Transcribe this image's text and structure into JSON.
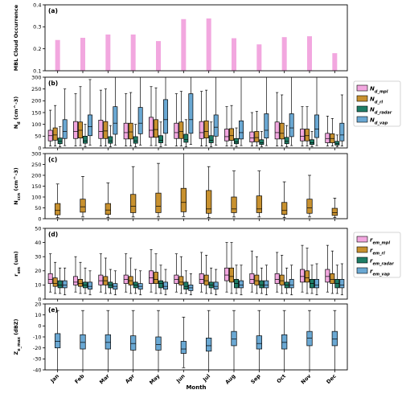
{
  "figure": {
    "xlabel": "Month",
    "months": [
      "Jan",
      "Feb",
      "Mar",
      "Apr",
      "May",
      "Jun",
      "Jul",
      "Aug",
      "Sep",
      "Oct",
      "Nov",
      "Dec"
    ]
  },
  "colors": {
    "mpl": "#f2a7df",
    "rl": "#c8912f",
    "radar": "#1e7d66",
    "vap": "#6aa8d3"
  },
  "chart_data": [
    {
      "type": "bar",
      "panel_label": "(a)",
      "ylabel": "MBL Cloud Occurrence",
      "ylim": [
        0.1,
        0.4
      ],
      "yticks": [
        "0.1",
        "0.2",
        "0.3",
        "0.4"
      ],
      "ytick_values": [
        0.1,
        0.2,
        0.3,
        0.4
      ],
      "categories": [
        "Jan",
        "Feb",
        "Mar",
        "Apr",
        "May",
        "Jun",
        "Jul",
        "Aug",
        "Sep",
        "Oct",
        "Nov",
        "Dec"
      ],
      "values": [
        0.24,
        0.25,
        0.265,
        0.265,
        0.235,
        0.335,
        0.338,
        0.248,
        0.22,
        0.253,
        0.257,
        0.18
      ],
      "color": "#f2a7df"
    },
    {
      "type": "boxplot",
      "panel_label": "(b)",
      "ylabel": "N_d (cm^-3)",
      "ylim": [
        0,
        300
      ],
      "yticks": [
        "0",
        "50",
        "100",
        "150",
        "200",
        "250",
        "300"
      ],
      "ytick_values": [
        0,
        50,
        100,
        150,
        200,
        250,
        300
      ],
      "legend": [
        "N_d_mpl",
        "N_d_rl",
        "N_d_radar",
        "N_d_vap"
      ],
      "series": [
        {
          "key": "mpl",
          "boxes": [
            [
              8,
              30,
              52,
              75,
              160
            ],
            [
              8,
              40,
              70,
              112,
              230
            ],
            [
              8,
              40,
              70,
              118,
              245
            ],
            [
              8,
              38,
              65,
              105,
              230
            ],
            [
              10,
              45,
              75,
              130,
              260
            ],
            [
              8,
              40,
              65,
              105,
              230
            ],
            [
              8,
              40,
              65,
              112,
              240
            ],
            [
              8,
              30,
              48,
              80,
              175
            ],
            [
              8,
              25,
              42,
              68,
              150
            ],
            [
              8,
              38,
              65,
              110,
              235
            ],
            [
              8,
              30,
              50,
              80,
              175
            ],
            [
              8,
              22,
              40,
              62,
              135
            ]
          ]
        },
        {
          "key": "rl",
          "boxes": [
            [
              8,
              33,
              55,
              85,
              180
            ],
            [
              10,
              42,
              75,
              110,
              260
            ],
            [
              8,
              40,
              72,
              112,
              250
            ],
            [
              8,
              38,
              68,
              105,
              235
            ],
            [
              10,
              45,
              78,
              120,
              255
            ],
            [
              8,
              40,
              70,
              110,
              240
            ],
            [
              8,
              42,
              70,
              115,
              245
            ],
            [
              8,
              32,
              52,
              82,
              180
            ],
            [
              8,
              26,
              44,
              70,
              155
            ],
            [
              8,
              38,
              62,
              105,
              225
            ],
            [
              8,
              30,
              52,
              80,
              175
            ],
            [
              8,
              22,
              40,
              60,
              125
            ]
          ]
        },
        {
          "key": "radar",
          "boxes": [
            [
              5,
              18,
              28,
              42,
              90
            ],
            [
              5,
              20,
              30,
              50,
              100
            ],
            [
              5,
              20,
              30,
              48,
              95
            ],
            [
              5,
              20,
              30,
              48,
              100
            ],
            [
              5,
              22,
              32,
              52,
              110
            ],
            [
              5,
              24,
              35,
              58,
              120
            ],
            [
              5,
              22,
              32,
              52,
              110
            ],
            [
              5,
              18,
              25,
              40,
              85
            ],
            [
              5,
              15,
              22,
              35,
              70
            ],
            [
              5,
              18,
              28,
              45,
              95
            ],
            [
              5,
              15,
              22,
              35,
              70
            ],
            [
              5,
              12,
              18,
              28,
              55
            ]
          ]
        },
        {
          "key": "vap",
          "boxes": [
            [
              10,
              40,
              70,
              120,
              250
            ],
            [
              12,
              52,
              90,
              140,
              290
            ],
            [
              12,
              58,
              105,
              175,
              300
            ],
            [
              12,
              60,
              105,
              172,
              300
            ],
            [
              12,
              62,
              120,
              205,
              300
            ],
            [
              15,
              62,
              120,
              230,
              300
            ],
            [
              12,
              50,
              88,
              140,
              300
            ],
            [
              10,
              38,
              65,
              115,
              300
            ],
            [
              10,
              42,
              75,
              145,
              300
            ],
            [
              10,
              48,
              85,
              145,
              300
            ],
            [
              10,
              44,
              80,
              140,
              300
            ],
            [
              8,
              30,
              55,
              105,
              225
            ]
          ]
        }
      ]
    },
    {
      "type": "boxplot",
      "panel_label": "(c)",
      "ylabel": "N_ccn (cm^-3)",
      "ylim": [
        0,
        300
      ],
      "yticks": [
        "0",
        "50",
        "100",
        "150",
        "200",
        "250",
        "300"
      ],
      "ytick_values": [
        0,
        50,
        100,
        150,
        200,
        250,
        300
      ],
      "series": [
        {
          "key": "rl",
          "boxes": [
            [
              5,
              18,
              38,
              70,
              160
            ],
            [
              8,
              30,
              55,
              90,
              195
            ],
            [
              5,
              20,
              40,
              70,
              165
            ],
            [
              8,
              28,
              58,
              112,
              240
            ],
            [
              8,
              28,
              58,
              118,
              255
            ],
            [
              10,
              32,
              75,
              140,
              300
            ],
            [
              5,
              25,
              45,
              130,
              240
            ],
            [
              8,
              28,
              45,
              100,
              220
            ],
            [
              8,
              28,
              45,
              105,
              220
            ],
            [
              5,
              20,
              38,
              75,
              170
            ],
            [
              8,
              25,
              50,
              90,
              200
            ],
            [
              5,
              15,
              28,
              48,
              95
            ]
          ]
        }
      ]
    },
    {
      "type": "boxplot",
      "panel_label": "(d)",
      "ylabel": "r_em (um)",
      "ylim": [
        0,
        50
      ],
      "yticks": [
        "0",
        "10",
        "20",
        "30",
        "40",
        "50"
      ],
      "ytick_values": [
        0,
        10,
        20,
        30,
        40,
        50
      ],
      "legend": [
        "r_em_mpl",
        "r_em_rl",
        "r_em_radar",
        "r_em_vap"
      ],
      "series": [
        {
          "key": "mpl",
          "boxes": [
            [
              5,
              11,
              14,
              18,
              32
            ],
            [
              5,
              10,
              12,
              16,
              30
            ],
            [
              5,
              10,
              13,
              17,
              32
            ],
            [
              5,
              11,
              14,
              17,
              32
            ],
            [
              5,
              11,
              15,
              20,
              35
            ],
            [
              5,
              11,
              14,
              17,
              32
            ],
            [
              5,
              11,
              14,
              18,
              33
            ],
            [
              5,
              13,
              17,
              22,
              40
            ],
            [
              5,
              11,
              14,
              18,
              34
            ],
            [
              5,
              11,
              14,
              18,
              33
            ],
            [
              5,
              12,
              16,
              21,
              38
            ],
            [
              5,
              12,
              16,
              21,
              38
            ]
          ]
        },
        {
          "key": "rl",
          "boxes": [
            [
              4,
              9,
              11,
              15,
              26
            ],
            [
              4,
              9,
              11,
              14,
              26
            ],
            [
              4,
              10,
              13,
              16,
              29
            ],
            [
              4,
              10,
              13,
              16,
              29
            ],
            [
              4,
              11,
              14,
              19,
              32
            ],
            [
              4,
              10,
              12,
              16,
              30
            ],
            [
              4,
              10,
              13,
              17,
              31
            ],
            [
              4,
              12,
              16,
              22,
              40
            ],
            [
              4,
              10,
              13,
              17,
              30
            ],
            [
              4,
              10,
              13,
              17,
              31
            ],
            [
              4,
              12,
              15,
              20,
              36
            ],
            [
              4,
              11,
              14,
              18,
              34
            ]
          ]
        },
        {
          "key": "radar",
          "boxes": [
            [
              4,
              8,
              10,
              13,
              22
            ],
            [
              4,
              8,
              10,
              12,
              22
            ],
            [
              4,
              8,
              10,
              12,
              21
            ],
            [
              4,
              8,
              10,
              12,
              21
            ],
            [
              4,
              8,
              11,
              13,
              24
            ],
            [
              4,
              7,
              9,
              12,
              20
            ],
            [
              4,
              8,
              10,
              12,
              22
            ],
            [
              4,
              8,
              11,
              14,
              24
            ],
            [
              4,
              8,
              10,
              13,
              22
            ],
            [
              4,
              8,
              10,
              12,
              22
            ],
            [
              4,
              8,
              11,
              14,
              24
            ],
            [
              4,
              8,
              11,
              14,
              24
            ]
          ]
        },
        {
          "key": "vap",
          "boxes": [
            [
              3,
              8,
              10,
              13,
              22
            ],
            [
              3,
              7,
              9,
              12,
              20
            ],
            [
              3,
              7,
              9,
              11,
              20
            ],
            [
              3,
              7,
              9,
              11,
              20
            ],
            [
              3,
              7,
              9,
              12,
              21
            ],
            [
              3,
              6,
              8,
              10,
              18
            ],
            [
              3,
              7,
              9,
              12,
              21
            ],
            [
              3,
              8,
              10,
              13,
              24
            ],
            [
              3,
              8,
              10,
              13,
              24
            ],
            [
              3,
              8,
              10,
              14,
              24
            ],
            [
              3,
              8,
              10,
              14,
              25
            ],
            [
              3,
              8,
              10,
              14,
              25
            ]
          ]
        }
      ]
    },
    {
      "type": "boxplot",
      "panel_label": "(e)",
      "ylabel": "Z_e_max (dBZ)",
      "ylim": [
        -40,
        20
      ],
      "yticks": [
        "-40",
        "-30",
        "-20",
        "-10",
        "0",
        "10",
        "20"
      ],
      "ytick_values": [
        -40,
        -30,
        -20,
        -10,
        0,
        10,
        20
      ],
      "series": [
        {
          "key": "vap",
          "boxes": [
            [
              -40,
              -20,
              -14,
              -7,
              14
            ],
            [
              -40,
              -21,
              -15,
              -8,
              14
            ],
            [
              -40,
              -21,
              -15,
              -8,
              14
            ],
            [
              -40,
              -22,
              -16,
              -9,
              14
            ],
            [
              -40,
              -22,
              -17,
              -10,
              14
            ],
            [
              -38,
              -25,
              -21,
              -14,
              8
            ],
            [
              -40,
              -23,
              -18,
              -11,
              14
            ],
            [
              -40,
              -18,
              -12,
              -5,
              14
            ],
            [
              -40,
              -21,
              -16,
              -9,
              14
            ],
            [
              -40,
              -21,
              -15,
              -8,
              14
            ],
            [
              -40,
              -18,
              -11,
              -5,
              14
            ],
            [
              -40,
              -18,
              -12,
              -5,
              14
            ]
          ]
        }
      ]
    }
  ]
}
